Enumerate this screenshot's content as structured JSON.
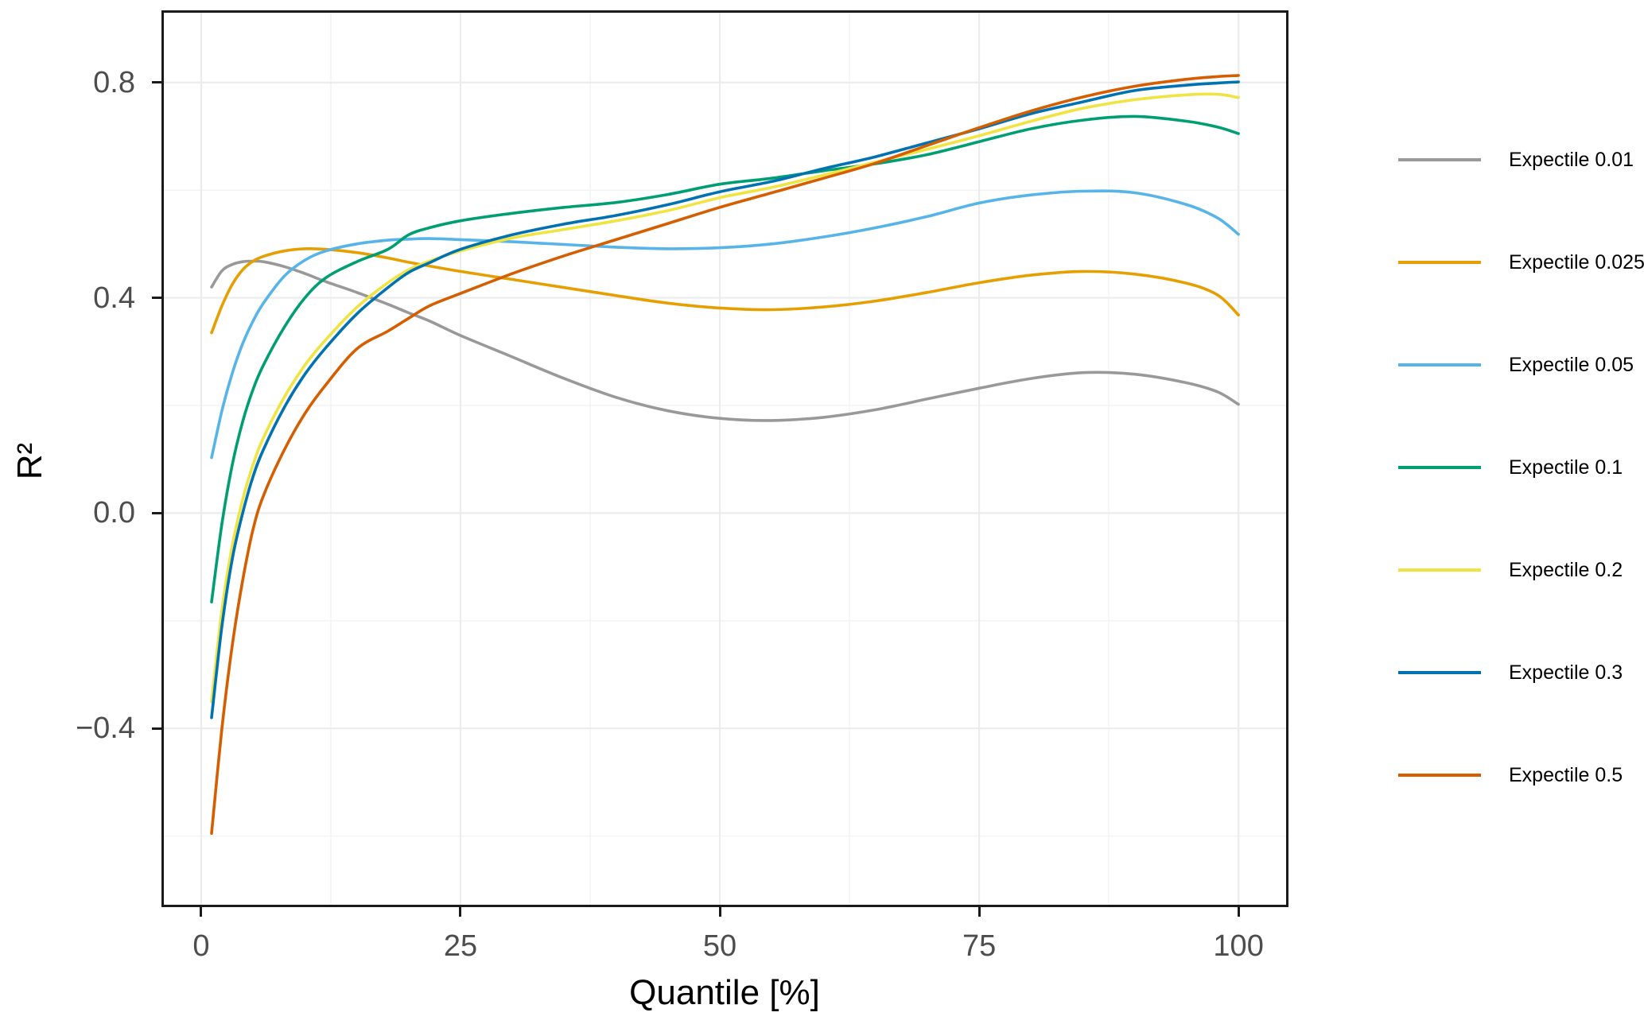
{
  "chart_data": {
    "type": "line",
    "title": "",
    "xlabel": "Quantile [%]",
    "ylabel": "R²",
    "xlim": [
      -3.83,
      104.82
    ],
    "ylim": [
      -0.732,
      0.934
    ],
    "x_ticks": [
      0,
      25,
      50,
      75,
      100
    ],
    "x_tick_labels": [
      "0",
      "25",
      "50",
      "75",
      "100"
    ],
    "x_minor_ticks": [
      12.5,
      37.5,
      62.5,
      87.5
    ],
    "y_ticks": [
      -0.4,
      0.0,
      0.4,
      0.8
    ],
    "y_tick_labels": [
      "−0.4",
      "0.0",
      "0.4",
      "0.8"
    ],
    "y_minor_ticks": [
      -0.6,
      -0.2,
      0.2,
      0.6
    ],
    "grid": "major+minor",
    "legend_position": "right",
    "x": [
      1,
      2,
      3,
      4,
      5,
      6,
      8,
      10,
      12,
      15,
      18,
      20,
      22,
      25,
      30,
      35,
      40,
      45,
      50,
      55,
      60,
      65,
      70,
      75,
      80,
      85,
      90,
      95,
      98,
      100
    ],
    "series": [
      {
        "name": "Expectile 0.01",
        "color": "#999999",
        "values": [
          0.42,
          0.45,
          0.462,
          0.467,
          0.468,
          0.467,
          0.458,
          0.445,
          0.43,
          0.41,
          0.388,
          0.372,
          0.357,
          0.33,
          0.29,
          0.25,
          0.215,
          0.19,
          0.176,
          0.172,
          0.178,
          0.192,
          0.212,
          0.232,
          0.25,
          0.261,
          0.258,
          0.242,
          0.225,
          0.202
        ]
      },
      {
        "name": "Expectile 0.025",
        "color": "#E69F00",
        "values": [
          0.335,
          0.385,
          0.425,
          0.452,
          0.468,
          0.477,
          0.487,
          0.491,
          0.49,
          0.484,
          0.474,
          0.466,
          0.459,
          0.449,
          0.434,
          0.419,
          0.404,
          0.39,
          0.381,
          0.378,
          0.383,
          0.394,
          0.41,
          0.428,
          0.442,
          0.449,
          0.444,
          0.427,
          0.405,
          0.368
        ]
      },
      {
        "name": "Expectile 0.05",
        "color": "#56B4E9",
        "values": [
          0.103,
          0.19,
          0.26,
          0.315,
          0.357,
          0.39,
          0.44,
          0.47,
          0.487,
          0.5,
          0.507,
          0.509,
          0.51,
          0.508,
          0.504,
          0.499,
          0.494,
          0.491,
          0.493,
          0.5,
          0.513,
          0.53,
          0.551,
          0.576,
          0.591,
          0.598,
          0.595,
          0.573,
          0.548,
          0.518
        ]
      },
      {
        "name": "Expectile 0.1",
        "color": "#009E73",
        "values": [
          -0.165,
          -0.02,
          0.09,
          0.17,
          0.23,
          0.275,
          0.345,
          0.4,
          0.437,
          0.467,
          0.49,
          0.517,
          0.53,
          0.543,
          0.557,
          0.568,
          0.577,
          0.592,
          0.611,
          0.622,
          0.636,
          0.649,
          0.666,
          0.69,
          0.714,
          0.73,
          0.737,
          0.728,
          0.717,
          0.705
        ]
      },
      {
        "name": "Expectile 0.2",
        "color": "#F0E442",
        "values": [
          -0.35,
          -0.18,
          -0.06,
          0.025,
          0.09,
          0.14,
          0.215,
          0.275,
          0.322,
          0.382,
          0.428,
          0.452,
          0.468,
          0.487,
          0.511,
          0.527,
          0.543,
          0.562,
          0.586,
          0.605,
          0.628,
          0.652,
          0.676,
          0.701,
          0.728,
          0.752,
          0.768,
          0.777,
          0.778,
          0.772
        ]
      },
      {
        "name": "Expectile 0.3",
        "color": "#0072B2",
        "values": [
          -0.38,
          -0.21,
          -0.085,
          0.0,
          0.068,
          0.118,
          0.196,
          0.258,
          0.307,
          0.37,
          0.419,
          0.447,
          0.465,
          0.49,
          0.517,
          0.537,
          0.553,
          0.573,
          0.597,
          0.616,
          0.64,
          0.662,
          0.688,
          0.714,
          0.742,
          0.764,
          0.785,
          0.795,
          0.799,
          0.801
        ]
      },
      {
        "name": "Expectile 0.5",
        "color": "#D55E00",
        "values": [
          -0.595,
          -0.4,
          -0.245,
          -0.125,
          -0.03,
          0.032,
          0.117,
          0.185,
          0.238,
          0.305,
          0.338,
          0.362,
          0.385,
          0.408,
          0.445,
          0.478,
          0.508,
          0.538,
          0.568,
          0.595,
          0.622,
          0.65,
          0.683,
          0.716,
          0.747,
          0.773,
          0.793,
          0.806,
          0.811,
          0.813
        ]
      }
    ]
  }
}
